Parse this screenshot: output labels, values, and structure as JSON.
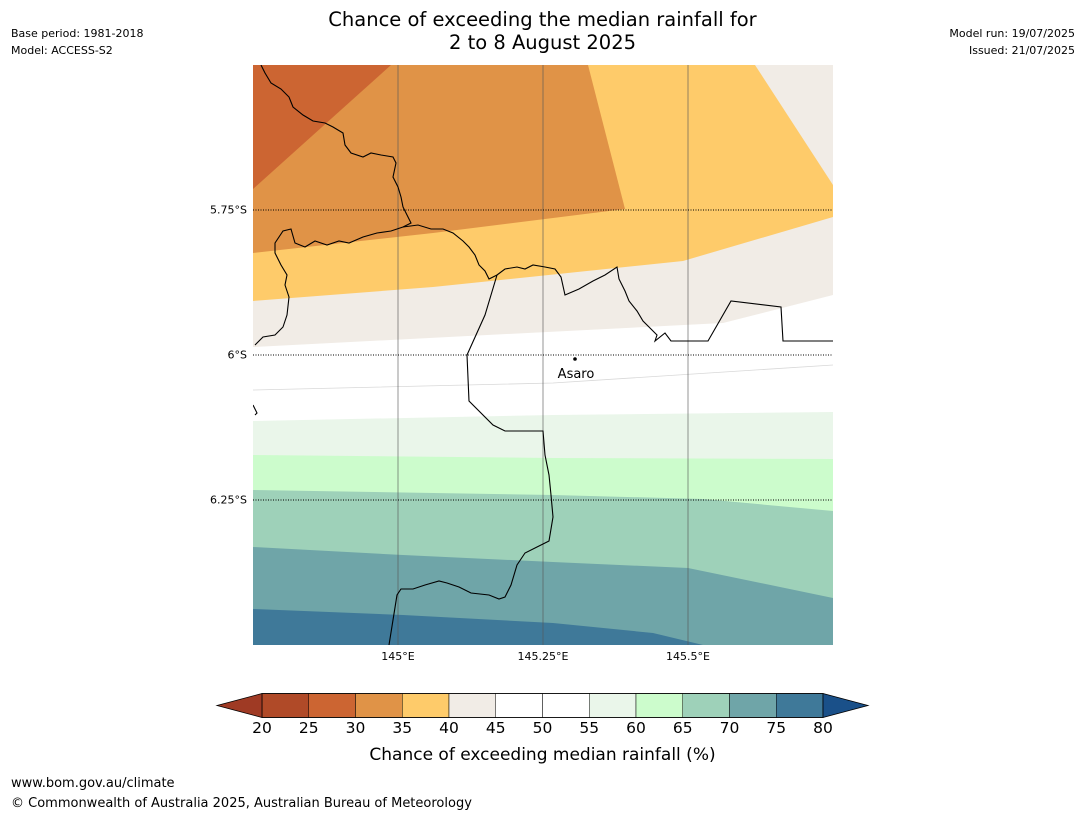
{
  "title_line1": "Chance of exceeding the median rainfall for",
  "title_line2": "2 to 8 August 2025",
  "meta": {
    "base_period": "Base period: 1981-2018",
    "model": "Model: ACCESS-S2",
    "model_run": "Model run: 19/07/2025",
    "issued": "Issued: 21/07/2025"
  },
  "map": {
    "lat_labels": [
      "5.75°S",
      "6°S",
      "6.25°S"
    ],
    "lon_labels": [
      "145°E",
      "145.25°E",
      "145.5°E"
    ],
    "place": {
      "name": "Asaro"
    }
  },
  "colorbar": {
    "ticks": [
      "20",
      "25",
      "30",
      "35",
      "40",
      "45",
      "50",
      "55",
      "60",
      "65",
      "70",
      "75",
      "80"
    ],
    "colors": {
      "below_20": "#9f3a24",
      "20_25": "#b04a28",
      "25_30": "#cc6532",
      "30_35": "#e09347",
      "35_40": "#fecb6a",
      "40_45": "#f1ece6",
      "45_50": "#ffffff",
      "50_55": "#ffffff",
      "55_60": "#eaf6ea",
      "60_65": "#ccfccc",
      "65_70": "#9ed1b9",
      "70_75": "#6fa5a8",
      "75_80": "#3f7999",
      "above_80": "#1a5089"
    },
    "label": "Chance of exceeding median rainfall (%)"
  },
  "footer": {
    "url": "www.bom.gov.au/climate",
    "copyright": "© Commonwealth of Australia 2025, Australian Bureau of Meteorology"
  }
}
